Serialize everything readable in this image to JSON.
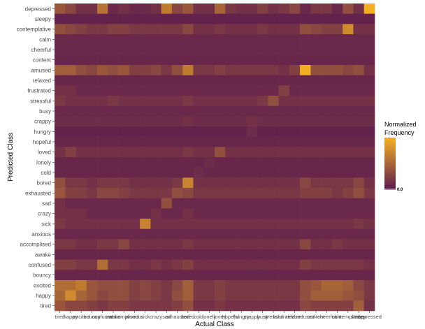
{
  "chart_data": {
    "type": "heatmap",
    "title": "",
    "xlabel": "Actual Class",
    "ylabel": "Predicted Class",
    "x_categories": [
      "tired",
      "happy",
      "excited",
      "bouncy",
      "confused",
      "awake",
      "accomplised",
      "anxious",
      "sick",
      "crazy",
      "sad",
      "exhausted",
      "bored",
      "cold",
      "lonely",
      "loved",
      "hopeful",
      "hungry",
      "crappy",
      "busy",
      "stressful",
      "frustrated",
      "relaxed",
      "amused",
      "content",
      "cheerful",
      "calm",
      "contemplative",
      "sleepy",
      "depressed"
    ],
    "y_categories": [
      "depressed",
      "sleepy",
      "contemplative",
      "calm",
      "cheerful",
      "content",
      "amused",
      "relaxed",
      "frustrated",
      "stressful",
      "busy",
      "crappy",
      "hungry",
      "hopeful",
      "loved",
      "lonely",
      "cold",
      "bored",
      "exhausted",
      "sad",
      "crazy",
      "sick",
      "anxious",
      "accomplised",
      "awake",
      "confused",
      "bouncy",
      "excited",
      "happy",
      "tired"
    ],
    "x_tick_text": [
      "tired",
      "happy",
      "excited",
      "bouncy",
      "confused",
      "awake",
      "accomplised",
      "anxious",
      "sick",
      "crazy",
      "sad",
      "exhausted",
      "bored",
      "cold",
      "lonely",
      "loved",
      "hopeful",
      "hungry",
      "crappy",
      "busy",
      "stressful",
      "frustrated",
      "relaxed",
      "amused",
      "content",
      "cheerful",
      "calm",
      "contemplative",
      "sleepy",
      "depressed"
    ],
    "values": [
      [
        0.4,
        0.3,
        0.15,
        0.15,
        0.6,
        0.1,
        0.15,
        0.1,
        0.1,
        0.15,
        0.65,
        0.3,
        0.4,
        0.15,
        0.15,
        0.5,
        0.2,
        0.15,
        0.15,
        0.25,
        0.15,
        0.2,
        0.3,
        0.1,
        0.2,
        0.2,
        0.1,
        0.35,
        0.15,
        1.0
      ],
      [
        0.05,
        0.05,
        0.05,
        0.05,
        0.05,
        0.05,
        0.05,
        0.05,
        0.05,
        0.05,
        0.05,
        0.05,
        0.05,
        0.05,
        0.05,
        0.05,
        0.05,
        0.05,
        0.05,
        0.05,
        0.05,
        0.05,
        0.05,
        0.05,
        0.05,
        0.05,
        0.05,
        0.05,
        0.05,
        0.05
      ],
      [
        0.35,
        0.3,
        0.25,
        0.2,
        0.2,
        0.25,
        0.25,
        0.2,
        0.2,
        0.2,
        0.2,
        0.2,
        0.3,
        0.15,
        0.15,
        0.2,
        0.15,
        0.15,
        0.15,
        0.2,
        0.15,
        0.15,
        0.15,
        0.35,
        0.3,
        0.25,
        0.25,
        0.75,
        0.15,
        0.15
      ],
      [
        0.1,
        0.1,
        0.1,
        0.1,
        0.1,
        0.1,
        0.1,
        0.1,
        0.1,
        0.1,
        0.1,
        0.1,
        0.1,
        0.1,
        0.1,
        0.1,
        0.1,
        0.1,
        0.1,
        0.1,
        0.1,
        0.1,
        0.1,
        0.1,
        0.1,
        0.1,
        0.1,
        0.1,
        0.1,
        0.1
      ],
      [
        0.1,
        0.1,
        0.1,
        0.1,
        0.1,
        0.1,
        0.1,
        0.1,
        0.1,
        0.1,
        0.1,
        0.1,
        0.1,
        0.1,
        0.1,
        0.1,
        0.1,
        0.1,
        0.1,
        0.1,
        0.1,
        0.1,
        0.1,
        0.1,
        0.1,
        0.1,
        0.1,
        0.1,
        0.1,
        0.1
      ],
      [
        0.08,
        0.08,
        0.08,
        0.08,
        0.08,
        0.08,
        0.08,
        0.08,
        0.08,
        0.08,
        0.08,
        0.08,
        0.08,
        0.08,
        0.08,
        0.08,
        0.08,
        0.08,
        0.08,
        0.08,
        0.08,
        0.08,
        0.08,
        0.08,
        0.08,
        0.08,
        0.08,
        0.08,
        0.08,
        0.08
      ],
      [
        0.45,
        0.45,
        0.35,
        0.3,
        0.4,
        0.35,
        0.4,
        0.25,
        0.25,
        0.3,
        0.2,
        0.35,
        0.65,
        0.2,
        0.2,
        0.25,
        0.2,
        0.2,
        0.2,
        0.2,
        0.2,
        0.15,
        0.25,
        1.0,
        0.35,
        0.35,
        0.35,
        0.3,
        0.35,
        0.15
      ],
      [
        0.08,
        0.08,
        0.08,
        0.08,
        0.08,
        0.08,
        0.08,
        0.08,
        0.08,
        0.08,
        0.08,
        0.08,
        0.08,
        0.08,
        0.08,
        0.08,
        0.08,
        0.08,
        0.08,
        0.08,
        0.08,
        0.08,
        0.08,
        0.08,
        0.08,
        0.08,
        0.08,
        0.08,
        0.08,
        0.08
      ],
      [
        0.15,
        0.15,
        0.1,
        0.1,
        0.1,
        0.1,
        0.1,
        0.1,
        0.1,
        0.1,
        0.1,
        0.1,
        0.1,
        0.1,
        0.1,
        0.1,
        0.1,
        0.1,
        0.1,
        0.1,
        0.1,
        0.25,
        0.1,
        0.1,
        0.1,
        0.1,
        0.1,
        0.1,
        0.1,
        0.1
      ],
      [
        0.2,
        0.15,
        0.15,
        0.15,
        0.15,
        0.2,
        0.15,
        0.15,
        0.15,
        0.15,
        0.15,
        0.15,
        0.2,
        0.15,
        0.15,
        0.15,
        0.15,
        0.15,
        0.15,
        0.2,
        0.35,
        0.15,
        0.15,
        0.15,
        0.15,
        0.15,
        0.15,
        0.15,
        0.15,
        0.15
      ],
      [
        0.1,
        0.1,
        0.1,
        0.1,
        0.1,
        0.1,
        0.1,
        0.1,
        0.1,
        0.1,
        0.1,
        0.1,
        0.1,
        0.1,
        0.1,
        0.1,
        0.1,
        0.1,
        0.1,
        0.1,
        0.1,
        0.1,
        0.1,
        0.1,
        0.1,
        0.1,
        0.1,
        0.1,
        0.1,
        0.1
      ],
      [
        0.12,
        0.12,
        0.12,
        0.12,
        0.12,
        0.12,
        0.12,
        0.12,
        0.12,
        0.12,
        0.12,
        0.12,
        0.15,
        0.12,
        0.12,
        0.12,
        0.12,
        0.12,
        0.15,
        0.12,
        0.12,
        0.12,
        0.12,
        0.12,
        0.12,
        0.12,
        0.12,
        0.12,
        0.12,
        0.12
      ],
      [
        0.05,
        0.05,
        0.05,
        0.05,
        0.05,
        0.05,
        0.05,
        0.05,
        0.05,
        0.05,
        0.05,
        0.05,
        0.05,
        0.05,
        0.05,
        0.05,
        0.05,
        0.05,
        0.12,
        0.05,
        0.05,
        0.05,
        0.05,
        0.05,
        0.05,
        0.05,
        0.05,
        0.05,
        0.05,
        0.05
      ],
      [
        0.08,
        0.08,
        0.08,
        0.08,
        0.08,
        0.08,
        0.08,
        0.08,
        0.08,
        0.08,
        0.08,
        0.08,
        0.08,
        0.08,
        0.08,
        0.08,
        0.08,
        0.08,
        0.08,
        0.08,
        0.08,
        0.08,
        0.08,
        0.08,
        0.08,
        0.08,
        0.08,
        0.08,
        0.08,
        0.08
      ],
      [
        0.15,
        0.25,
        0.15,
        0.15,
        0.15,
        0.15,
        0.15,
        0.15,
        0.15,
        0.15,
        0.15,
        0.15,
        0.2,
        0.15,
        0.15,
        0.35,
        0.15,
        0.15,
        0.15,
        0.15,
        0.15,
        0.15,
        0.15,
        0.15,
        0.15,
        0.15,
        0.15,
        0.15,
        0.15,
        0.15
      ],
      [
        0.08,
        0.08,
        0.08,
        0.08,
        0.08,
        0.08,
        0.08,
        0.08,
        0.08,
        0.08,
        0.08,
        0.08,
        0.08,
        0.08,
        0.12,
        0.08,
        0.08,
        0.08,
        0.08,
        0.08,
        0.08,
        0.08,
        0.08,
        0.08,
        0.08,
        0.08,
        0.08,
        0.08,
        0.08,
        0.08
      ],
      [
        0.08,
        0.08,
        0.08,
        0.08,
        0.08,
        0.08,
        0.08,
        0.08,
        0.08,
        0.08,
        0.08,
        0.08,
        0.08,
        0.12,
        0.08,
        0.08,
        0.08,
        0.08,
        0.08,
        0.08,
        0.08,
        0.08,
        0.08,
        0.08,
        0.08,
        0.08,
        0.08,
        0.08,
        0.08,
        0.08
      ],
      [
        0.35,
        0.2,
        0.2,
        0.15,
        0.2,
        0.2,
        0.2,
        0.15,
        0.15,
        0.15,
        0.15,
        0.2,
        0.7,
        0.15,
        0.15,
        0.15,
        0.15,
        0.15,
        0.15,
        0.15,
        0.15,
        0.15,
        0.15,
        0.3,
        0.2,
        0.2,
        0.2,
        0.2,
        0.3,
        0.15
      ],
      [
        0.4,
        0.25,
        0.25,
        0.2,
        0.3,
        0.3,
        0.25,
        0.2,
        0.2,
        0.2,
        0.2,
        0.35,
        0.3,
        0.2,
        0.2,
        0.2,
        0.2,
        0.2,
        0.2,
        0.2,
        0.2,
        0.2,
        0.2,
        0.25,
        0.25,
        0.25,
        0.2,
        0.25,
        0.35,
        0.2
      ],
      [
        0.15,
        0.1,
        0.1,
        0.1,
        0.1,
        0.1,
        0.1,
        0.1,
        0.1,
        0.1,
        0.35,
        0.1,
        0.1,
        0.1,
        0.1,
        0.1,
        0.1,
        0.1,
        0.1,
        0.1,
        0.1,
        0.1,
        0.1,
        0.1,
        0.1,
        0.1,
        0.1,
        0.1,
        0.1,
        0.1
      ],
      [
        0.15,
        0.15,
        0.15,
        0.1,
        0.1,
        0.1,
        0.1,
        0.1,
        0.1,
        0.15,
        0.1,
        0.1,
        0.15,
        0.1,
        0.1,
        0.1,
        0.1,
        0.1,
        0.1,
        0.1,
        0.1,
        0.1,
        0.1,
        0.1,
        0.1,
        0.1,
        0.1,
        0.1,
        0.1,
        0.1
      ],
      [
        0.2,
        0.15,
        0.15,
        0.15,
        0.15,
        0.15,
        0.15,
        0.15,
        0.7,
        0.15,
        0.15,
        0.15,
        0.15,
        0.15,
        0.15,
        0.15,
        0.15,
        0.15,
        0.15,
        0.15,
        0.15,
        0.15,
        0.15,
        0.15,
        0.15,
        0.15,
        0.15,
        0.15,
        0.2,
        0.15
      ],
      [
        0.1,
        0.1,
        0.1,
        0.1,
        0.1,
        0.1,
        0.1,
        0.1,
        0.1,
        0.1,
        0.1,
        0.1,
        0.1,
        0.1,
        0.1,
        0.1,
        0.1,
        0.1,
        0.1,
        0.1,
        0.1,
        0.1,
        0.1,
        0.1,
        0.1,
        0.1,
        0.1,
        0.1,
        0.1,
        0.1
      ],
      [
        0.2,
        0.2,
        0.15,
        0.15,
        0.2,
        0.2,
        0.3,
        0.15,
        0.15,
        0.15,
        0.15,
        0.15,
        0.2,
        0.15,
        0.15,
        0.15,
        0.15,
        0.15,
        0.15,
        0.15,
        0.15,
        0.15,
        0.15,
        0.3,
        0.15,
        0.15,
        0.2,
        0.15,
        0.15,
        0.15
      ],
      [
        0.08,
        0.08,
        0.08,
        0.08,
        0.08,
        0.08,
        0.08,
        0.08,
        0.08,
        0.08,
        0.08,
        0.08,
        0.08,
        0.08,
        0.08,
        0.08,
        0.08,
        0.08,
        0.08,
        0.08,
        0.08,
        0.08,
        0.08,
        0.08,
        0.08,
        0.08,
        0.08,
        0.08,
        0.08,
        0.08
      ],
      [
        0.25,
        0.25,
        0.2,
        0.2,
        0.55,
        0.2,
        0.2,
        0.15,
        0.15,
        0.2,
        0.15,
        0.2,
        0.25,
        0.15,
        0.15,
        0.15,
        0.15,
        0.15,
        0.15,
        0.15,
        0.15,
        0.15,
        0.15,
        0.25,
        0.2,
        0.2,
        0.2,
        0.2,
        0.2,
        0.15
      ],
      [
        0.08,
        0.08,
        0.08,
        0.08,
        0.08,
        0.08,
        0.08,
        0.08,
        0.08,
        0.08,
        0.08,
        0.08,
        0.08,
        0.08,
        0.08,
        0.08,
        0.08,
        0.08,
        0.08,
        0.08,
        0.08,
        0.08,
        0.08,
        0.08,
        0.08,
        0.08,
        0.08,
        0.08,
        0.08,
        0.08
      ],
      [
        0.55,
        0.55,
        0.65,
        0.4,
        0.35,
        0.35,
        0.35,
        0.25,
        0.3,
        0.25,
        0.2,
        0.3,
        0.45,
        0.2,
        0.2,
        0.25,
        0.2,
        0.2,
        0.2,
        0.2,
        0.2,
        0.2,
        0.2,
        0.35,
        0.4,
        0.5,
        0.5,
        0.45,
        0.3,
        0.2
      ],
      [
        0.5,
        0.75,
        0.5,
        0.4,
        0.3,
        0.35,
        0.35,
        0.25,
        0.3,
        0.25,
        0.2,
        0.35,
        0.45,
        0.2,
        0.2,
        0.25,
        0.2,
        0.2,
        0.2,
        0.2,
        0.2,
        0.2,
        0.2,
        0.35,
        0.45,
        0.45,
        0.45,
        0.4,
        0.35,
        0.2
      ],
      [
        0.4,
        0.3,
        0.3,
        0.25,
        0.2,
        0.25,
        0.25,
        0.2,
        0.2,
        0.2,
        0.2,
        0.25,
        0.35,
        0.15,
        0.15,
        0.2,
        0.15,
        0.15,
        0.15,
        0.15,
        0.15,
        0.15,
        0.15,
        0.3,
        0.25,
        0.25,
        0.25,
        0.25,
        0.45,
        0.15
      ]
    ],
    "grid": true,
    "legend": {
      "title_lines": [
        "Normalized",
        "Frequency"
      ],
      "placement": "right",
      "tick_text": "0.0",
      "color_low": "#5b1a4e",
      "color_high": "#f5b022"
    }
  }
}
